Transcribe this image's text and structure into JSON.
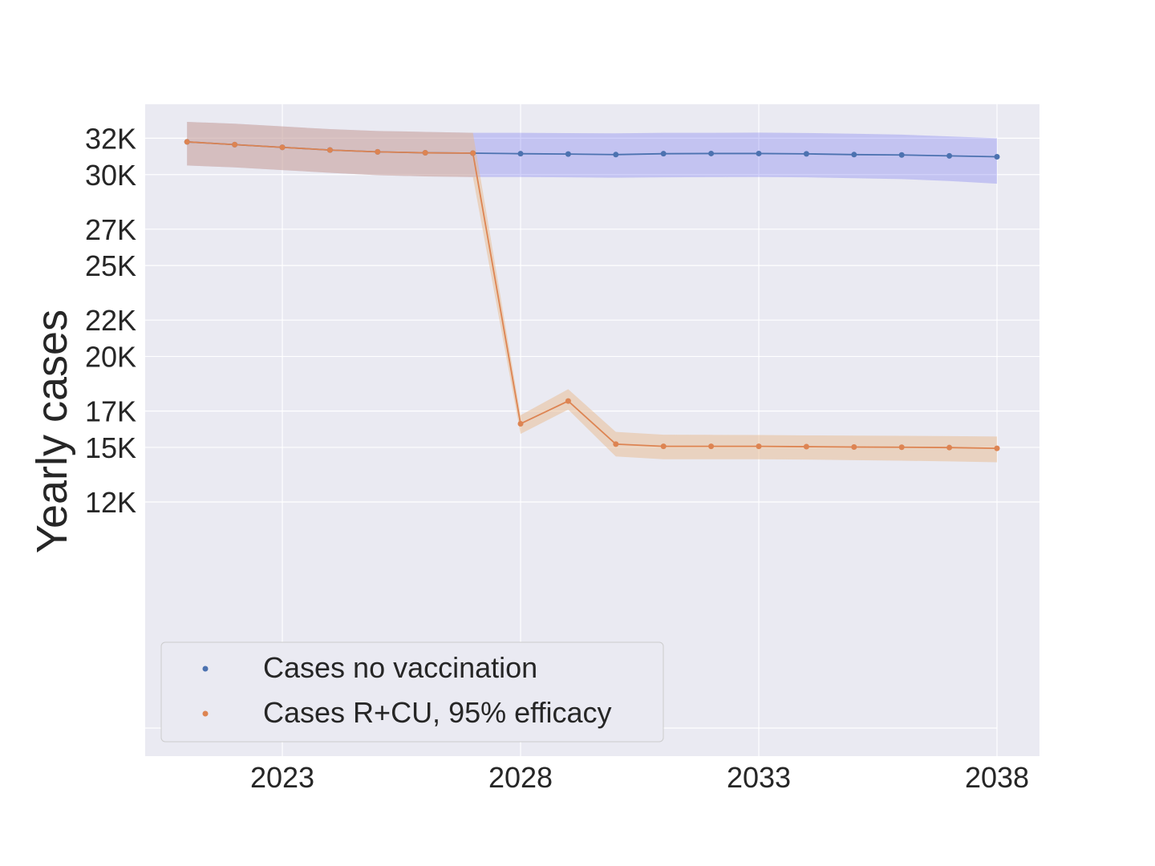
{
  "chart_data": {
    "type": "line",
    "xlabel": "",
    "ylabel": "Yearly cases",
    "x_ticks": [
      "2023",
      "2028",
      "2033",
      "2038"
    ],
    "y_ticks": [
      "12K",
      "15K",
      "17K",
      "20K",
      "22K",
      "25K",
      "27K",
      "30K",
      "32K"
    ],
    "x": [
      2021,
      2022,
      2023,
      2024,
      2025,
      2026,
      2027,
      2028,
      2029,
      2030,
      2031,
      2032,
      2033,
      2034,
      2035,
      2036,
      2037,
      2038
    ],
    "series": [
      {
        "name": "Cases no vaccination",
        "color": "#4c72b0",
        "band_color": "#6b6bf0",
        "values": [
          31800,
          31650,
          31500,
          31350,
          31250,
          31200,
          31180,
          31150,
          31130,
          31100,
          31150,
          31160,
          31160,
          31140,
          31100,
          31080,
          31030,
          30980
        ],
        "lower": [
          30500,
          30400,
          30250,
          30100,
          29970,
          29900,
          29870,
          29870,
          29850,
          29830,
          29850,
          29860,
          29870,
          29850,
          29800,
          29750,
          29650,
          29500
        ],
        "upper": [
          32900,
          32800,
          32650,
          32500,
          32400,
          32350,
          32300,
          32300,
          32280,
          32270,
          32300,
          32300,
          32310,
          32290,
          32250,
          32200,
          32100,
          32000
        ]
      },
      {
        "name": "Cases R+CU, 95% efficacy",
        "color": "#dd8452",
        "band_color": "#e8b98d",
        "values": [
          31800,
          31650,
          31500,
          31350,
          31250,
          31200,
          31180,
          16300,
          17550,
          15180,
          15060,
          15060,
          15060,
          15040,
          15020,
          15010,
          14990,
          14950
        ],
        "lower": [
          30500,
          30400,
          30250,
          30100,
          29970,
          29900,
          29870,
          15740,
          17080,
          14500,
          14350,
          14350,
          14350,
          14330,
          14300,
          14270,
          14230,
          14180
        ],
        "upper": [
          32900,
          32800,
          32650,
          32500,
          32400,
          32350,
          32300,
          16770,
          18200,
          15850,
          15700,
          15690,
          15680,
          15660,
          15650,
          15640,
          15620,
          15600
        ]
      }
    ],
    "legend_position": "lower-left",
    "grid": true
  }
}
